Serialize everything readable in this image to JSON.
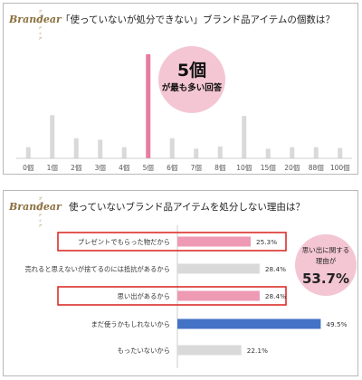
{
  "brand": {
    "logo_text": "Brandear",
    "logo_tagline": "ブランディア"
  },
  "charts": [
    {
      "title": "「使っていないが処分できない」ブランド品アイテムの個数は？",
      "callout": {
        "number": "5個",
        "text": "が最も多い回答"
      },
      "colors": {
        "highlight": "#e87c9f",
        "normal": "#d9d9d9"
      }
    },
    {
      "title": "使っていないブランド品アイテムを処分しない理由は？",
      "callout": {
        "text1": "思い出に関する",
        "text2": "理由が",
        "number": "53.7%"
      },
      "colors": {
        "pink": "#ee9ab4",
        "gray": "#d9d9d9",
        "blue": "#4472c4",
        "box": "#d9211c"
      }
    }
  ],
  "chart_data": [
    {
      "type": "bar",
      "categories": [
        "0個",
        "1個",
        "2個",
        "3個",
        "4個",
        "5個",
        "6個",
        "7個",
        "8個",
        "10個",
        "15個",
        "20個",
        "88個",
        "100個"
      ],
      "values": [
        1.5,
        5.8,
        2.7,
        2.5,
        1.5,
        14.0,
        2.7,
        1.3,
        1.6,
        5.7,
        1.3,
        1.5,
        1.5,
        1.4
      ],
      "highlight_index": 5
    },
    {
      "type": "bar",
      "orientation": "horizontal",
      "categories": [
        "プレゼントでもらった物だから",
        "売れると思えないが捨てるのには抵抗があるから",
        "思い出があるから",
        "まだ使うかもしれないから",
        "もったいないから"
      ],
      "values": [
        25.3,
        28.4,
        28.4,
        49.5,
        22.1
      ],
      "value_labels": [
        "25.3%",
        "28.4%",
        "28.4%",
        "49.5%",
        "22.1%"
      ],
      "colors": [
        "#ee9ab4",
        "#d9d9d9",
        "#ee9ab4",
        "#4472c4",
        "#d9d9d9"
      ],
      "boxed": [
        true,
        false,
        true,
        false,
        false
      ]
    }
  ]
}
